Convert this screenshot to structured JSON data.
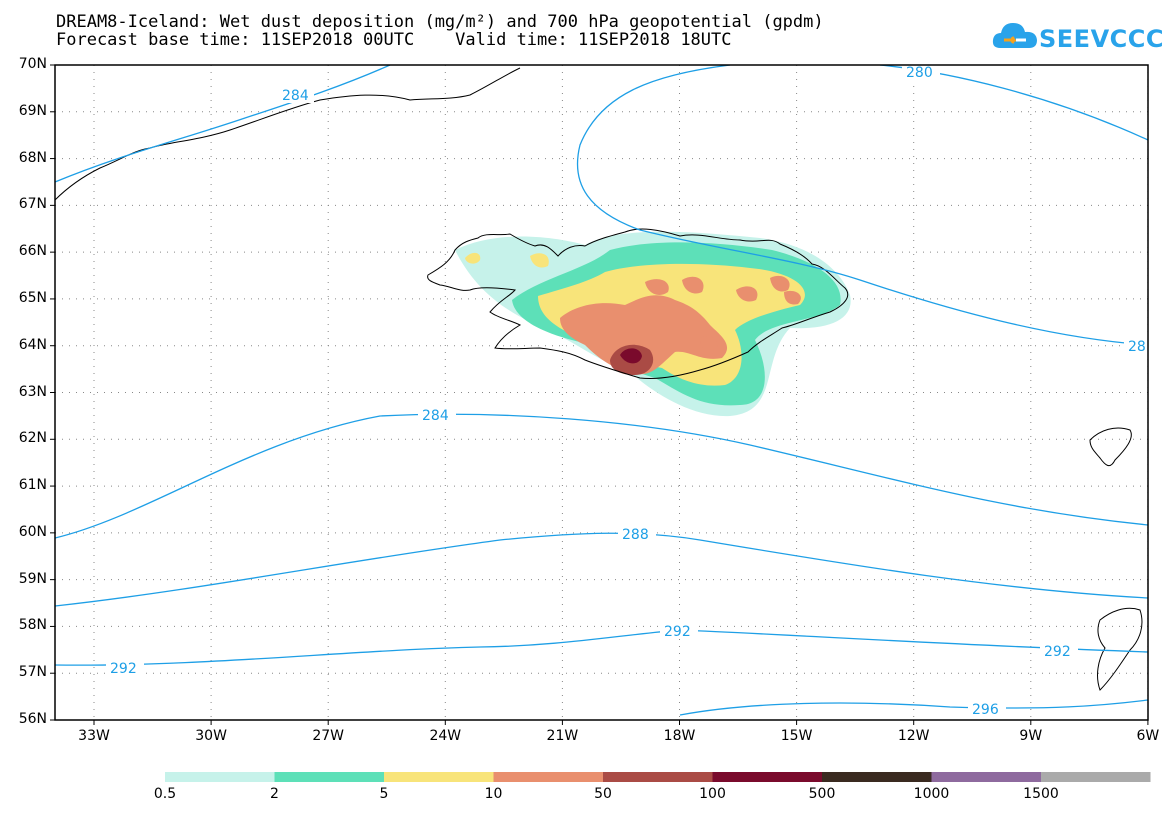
{
  "title": {
    "line1": "DREAM8-Iceland: Wet dust deposition (mg/m²) and 700 hPa geopotential (gpdm)",
    "line2": "Forecast base time: 11SEP2018 00UTC    Valid time: 11SEP2018 18UTC"
  },
  "logo": {
    "text": "SEEVCCC"
  },
  "map": {
    "lat_ticks": [
      "70N",
      "69N",
      "68N",
      "67N",
      "66N",
      "65N",
      "64N",
      "63N",
      "62N",
      "61N",
      "60N",
      "59N",
      "58N",
      "57N",
      "56N"
    ],
    "lon_ticks": [
      "33W",
      "30W",
      "27W",
      "24W",
      "21W",
      "18W",
      "15W",
      "12W",
      "9W",
      "6W"
    ],
    "contour_labels": [
      "284",
      "280",
      "28",
      "284",
      "288",
      "292",
      "292",
      "292",
      "296"
    ],
    "contour_color": "#1e9fe6"
  },
  "colorbar": {
    "labels": [
      "0.5",
      "2",
      "5",
      "10",
      "50",
      "100",
      "500",
      "1000",
      "1500"
    ],
    "colors": [
      "#c6f2ea",
      "#5de0b8",
      "#f8e47a",
      "#e98f6e",
      "#aa4b45",
      "#7a0a2c",
      "#3a2a20",
      "#8e6a9e",
      "#aaaaaa"
    ]
  }
}
